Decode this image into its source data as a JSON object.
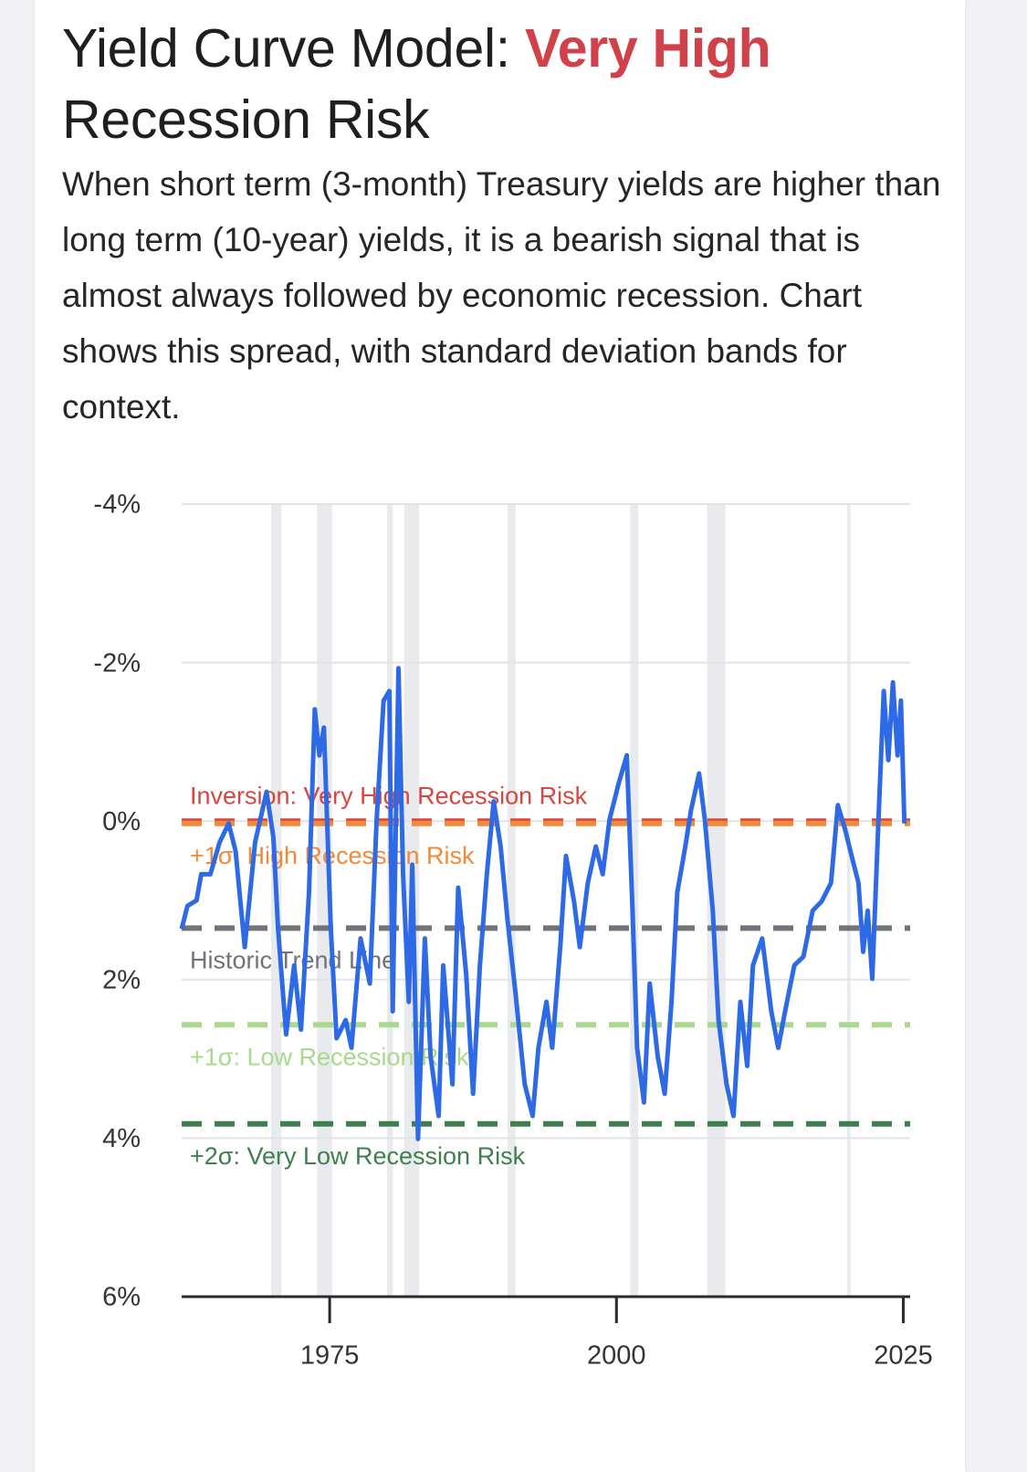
{
  "header": {
    "title_prefix": "Yield Curve Model: ",
    "title_highlight": "Very High",
    "title_suffix": " Recession Risk",
    "description": "When short term (3-month) Treasury yields are higher than long term (10-year) yields, it is a bearish signal that is almost always followed by economic recession. Chart shows this spread, with standard deviation bands for context."
  },
  "chart_data": {
    "type": "line",
    "ylim": [
      -4,
      6
    ],
    "invert_y": true,
    "yticks": [
      {
        "value": -4,
        "label": "-4%"
      },
      {
        "value": -2,
        "label": "-2%"
      },
      {
        "value": 0,
        "label": "0%"
      },
      {
        "value": 2,
        "label": "2%"
      },
      {
        "value": 4,
        "label": "4%"
      },
      {
        "value": 6,
        "label": "6%"
      }
    ],
    "xlim": [
      1962.1,
      2025.6
    ],
    "xticks": [
      1975,
      2000,
      2025
    ],
    "grid": true,
    "shaded_periods": [
      [
        1969.9,
        1970.8
      ],
      [
        1973.9,
        1975.2
      ],
      [
        1980.0,
        1980.5
      ],
      [
        1981.5,
        1982.8
      ],
      [
        1990.5,
        1991.2
      ],
      [
        2001.2,
        2001.9
      ],
      [
        2007.9,
        2009.5
      ],
      [
        2020.1,
        2020.4
      ]
    ],
    "reference_lines": [
      {
        "label": "Inversion: Very High Recession Risk",
        "value": 0,
        "color": "#d9453f"
      },
      {
        "label": "+1σ: High Recession Risk",
        "value": 0.03,
        "color": "#f08a3a"
      },
      {
        "label": "Historic Trend Line",
        "value": 1.35,
        "color": "#707378"
      },
      {
        "label": "+1σ: Low Recession Risk",
        "value": 2.57,
        "color": "#a9d98c"
      },
      {
        "label": "+2σ: Very Low Recession Risk",
        "value": 3.82,
        "color": "#3f7f4e"
      }
    ],
    "series": [
      {
        "color": "#2f6ae6",
        "x": [
          1962.1,
          1962.6,
          1963.4,
          1963.8,
          1964.6,
          1965.4,
          1966.2,
          1966.8,
          1967.6,
          1968.5,
          1969.5,
          1970.1,
          1970.5,
          1971.2,
          1971.9,
          1972.5,
          1973.2,
          1973.7,
          1974.1,
          1974.5,
          1975.1,
          1975.6,
          1976.4,
          1976.9,
          1977.7,
          1978.5,
          1979.1,
          1979.7,
          1980.2,
          1980.5,
          1981.0,
          1981.4,
          1981.9,
          1982.2,
          1982.7,
          1983.3,
          1983.8,
          1984.5,
          1984.9,
          1985.7,
          1986.2,
          1986.9,
          1987.5,
          1988.1,
          1988.7,
          1989.3,
          1989.9,
          1990.5,
          1991.2,
          1992.0,
          1992.7,
          1993.2,
          1993.9,
          1994.4,
          1995.1,
          1995.6,
          1996.3,
          1996.8,
          1997.5,
          1998.2,
          1998.8,
          1999.4,
          2000.2,
          2000.9,
          2001.4,
          2001.8,
          2002.4,
          2002.9,
          2003.6,
          2004.2,
          2004.8,
          2005.3,
          2006.0,
          2006.5,
          2007.2,
          2007.7,
          2008.4,
          2008.9,
          2009.6,
          2010.2,
          2010.8,
          2011.4,
          2011.9,
          2012.7,
          2013.5,
          2014.1,
          2014.7,
          2015.5,
          2016.3,
          2017.1,
          2017.9,
          2018.7,
          2019.3,
          2019.9,
          2020.5,
          2021.1,
          2021.5,
          2021.9,
          2022.3,
          2022.9,
          2023.3,
          2023.7,
          2024.1,
          2024.5,
          2024.8,
          2025.1
        ],
        "values": [
          1.36,
          1.07,
          1.0,
          0.67,
          0.67,
          0.27,
          0.03,
          0.38,
          1.59,
          0.27,
          -0.37,
          0.21,
          1.36,
          2.69,
          1.82,
          2.63,
          0.9,
          -1.41,
          -0.83,
          -1.18,
          1.36,
          2.74,
          2.51,
          2.86,
          1.48,
          2.05,
          -0.02,
          -1.52,
          -1.64,
          2.4,
          -1.93,
          0.67,
          2.28,
          0.55,
          4.01,
          1.48,
          2.97,
          3.72,
          1.82,
          3.32,
          0.84,
          1.94,
          3.44,
          1.82,
          0.67,
          -0.25,
          0.32,
          1.24,
          2.17,
          3.32,
          3.72,
          2.86,
          2.28,
          2.86,
          1.59,
          0.44,
          1.01,
          1.59,
          0.78,
          0.32,
          0.67,
          -0.02,
          -0.48,
          -0.83,
          1.13,
          2.86,
          3.55,
          2.05,
          2.97,
          3.44,
          2.28,
          0.9,
          0.32,
          -0.14,
          -0.6,
          -0.02,
          1.13,
          2.51,
          3.32,
          3.72,
          2.28,
          3.09,
          1.82,
          1.48,
          2.4,
          2.86,
          2.4,
          1.82,
          1.71,
          1.13,
          1.01,
          0.78,
          -0.2,
          0.09,
          0.44,
          0.78,
          1.65,
          1.13,
          1.99,
          -0.25,
          -1.64,
          -0.77,
          -1.75,
          -0.83,
          -1.52,
          0.03
        ]
      }
    ]
  }
}
